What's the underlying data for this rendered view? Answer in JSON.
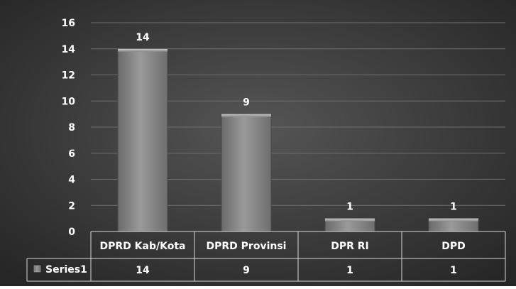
{
  "chart_data": {
    "type": "bar",
    "title": "",
    "xlabel": "",
    "ylabel": "",
    "categories": [
      "DPRD Kab/Kota",
      "DPRD Provinsi",
      "DPR RI",
      "DPD"
    ],
    "series": [
      {
        "name": "Series1",
        "values": [
          14,
          9,
          1,
          1
        ]
      }
    ],
    "ylim": [
      0,
      16
    ],
    "yticks": [
      0,
      2,
      4,
      6,
      8,
      10,
      12,
      14,
      16
    ],
    "grid": true,
    "legend": "data-table",
    "data_labels": true,
    "colors": {
      "background": "#3c3c3c",
      "bar": "#8a8a8a",
      "text": "#ffffff",
      "grid": "#6e6e6e",
      "table_border": "#d8d8d8"
    }
  }
}
